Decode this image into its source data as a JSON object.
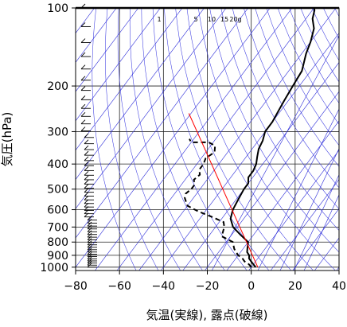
{
  "chart_data": {
    "type": "line",
    "title": "",
    "xlabel": "気温(実線), 露点(破線)",
    "ylabel": "気圧(hPa)",
    "xlim": [
      -80,
      40
    ],
    "ylim": [
      1030,
      100
    ],
    "y_scale": "log",
    "grid": true,
    "x_ticks": [
      "−80",
      "−60",
      "−40",
      "−20",
      "0",
      "20",
      "40"
    ],
    "x_tick_values": [
      -80,
      -60,
      -40,
      -20,
      0,
      20,
      40
    ],
    "y_ticks": [
      "100",
      "200",
      "300",
      "400",
      "500",
      "600",
      "700",
      "800",
      "900",
      "1000"
    ],
    "y_tick_values": [
      100,
      200,
      300,
      400,
      500,
      600,
      700,
      800,
      900,
      1000
    ],
    "mixing_ratio_labels": [
      "1",
      "5",
      "10",
      "15",
      "20g"
    ],
    "series": [
      {
        "style": "solid",
        "color": "#000000",
        "points": [
          [
            2,
            1000
          ],
          [
            0,
            975
          ],
          [
            -2,
            950
          ],
          [
            -4,
            925
          ],
          [
            -5,
            900
          ],
          [
            -7,
            875
          ],
          [
            -8,
            850
          ],
          [
            -10,
            800
          ],
          [
            -16,
            750
          ],
          [
            -22,
            700
          ],
          [
            -26,
            650
          ],
          [
            -28,
            600
          ],
          [
            -29,
            550
          ],
          [
            -30,
            500
          ],
          [
            -30,
            475
          ],
          [
            -32,
            450
          ],
          [
            -32,
            425
          ],
          [
            -33,
            400
          ],
          [
            -35,
            375
          ],
          [
            -37,
            350
          ],
          [
            -38,
            325
          ],
          [
            -40,
            300
          ],
          [
            -40,
            275
          ],
          [
            -41,
            250
          ],
          [
            -42,
            225
          ],
          [
            -43,
            200
          ],
          [
            -44,
            175
          ],
          [
            -48,
            150
          ],
          [
            -50,
            135
          ],
          [
            -53,
            120
          ],
          [
            -57,
            110
          ],
          [
            -59,
            102
          ],
          [
            -60,
            100
          ]
        ]
      },
      {
        "style": "dashed",
        "color": "#000000",
        "points": [
          [
            0,
            1000
          ],
          [
            -2,
            975
          ],
          [
            -5,
            950
          ],
          [
            -7,
            925
          ],
          [
            -10,
            900
          ],
          [
            -12,
            875
          ],
          [
            -14,
            850
          ],
          [
            -17,
            800
          ],
          [
            -24,
            760
          ],
          [
            -26,
            700
          ],
          [
            -28,
            670
          ],
          [
            -35,
            640
          ],
          [
            -43,
            610
          ],
          [
            -50,
            580
          ],
          [
            -52,
            560
          ],
          [
            -54,
            540
          ],
          [
            -55,
            520
          ],
          [
            -54,
            500
          ],
          [
            -54,
            480
          ],
          [
            -56,
            460
          ],
          [
            -55,
            440
          ],
          [
            -57,
            420
          ],
          [
            -57,
            400
          ],
          [
            -58,
            380
          ],
          [
            -56,
            360
          ],
          [
            -58,
            340
          ],
          [
            -62,
            330
          ],
          [
            -66,
            330
          ],
          [
            -70,
            330
          ],
          [
            -72,
            320
          ]
        ]
      },
      {
        "style": "solid",
        "color": "#ff0000",
        "points": [
          [
            3,
            1000
          ],
          [
            -81,
            255
          ]
        ]
      }
    ]
  }
}
